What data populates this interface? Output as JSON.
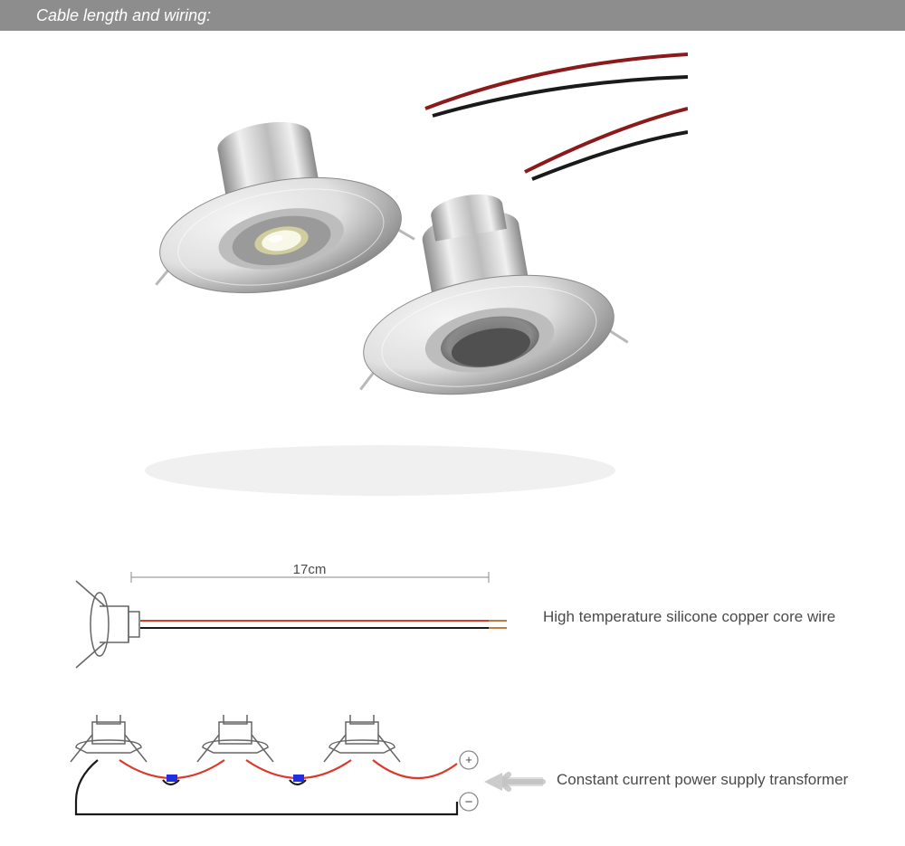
{
  "header": {
    "title": "Cable length and wiring:",
    "bg_color": "#8d8d8d",
    "text_color": "#ffffff",
    "height": 34
  },
  "photo": {
    "metal_light": "#e0e0e0",
    "metal_mid": "#bdbdbd",
    "metal_dark": "#8a8a8a",
    "led_color": "#f8f8e8",
    "led_rim": "#d0cda0",
    "wire_red": "#8b1a1a",
    "wire_black": "#1a1a1a",
    "clip_color": "#b8b8b8"
  },
  "cable": {
    "length_label": "17cm",
    "wire_label": "High temperature silicone copper core wire",
    "outline": "#666666",
    "wire_red": "#d93a2b",
    "wire_black": "#1a1a1a",
    "text_color": "#4a4a4a",
    "dim_color": "#888888"
  },
  "wiring": {
    "transformer_label": "Constant current power supply transformer",
    "plus": "+",
    "minus": "−",
    "outline": "#666666",
    "wire_red": "#d93a2b",
    "wire_black": "#1a1a1a",
    "connector_color": "#2030e0",
    "arrow_fill": "#cccccc",
    "circle_stroke": "#888888",
    "text_color": "#4a4a4a"
  }
}
